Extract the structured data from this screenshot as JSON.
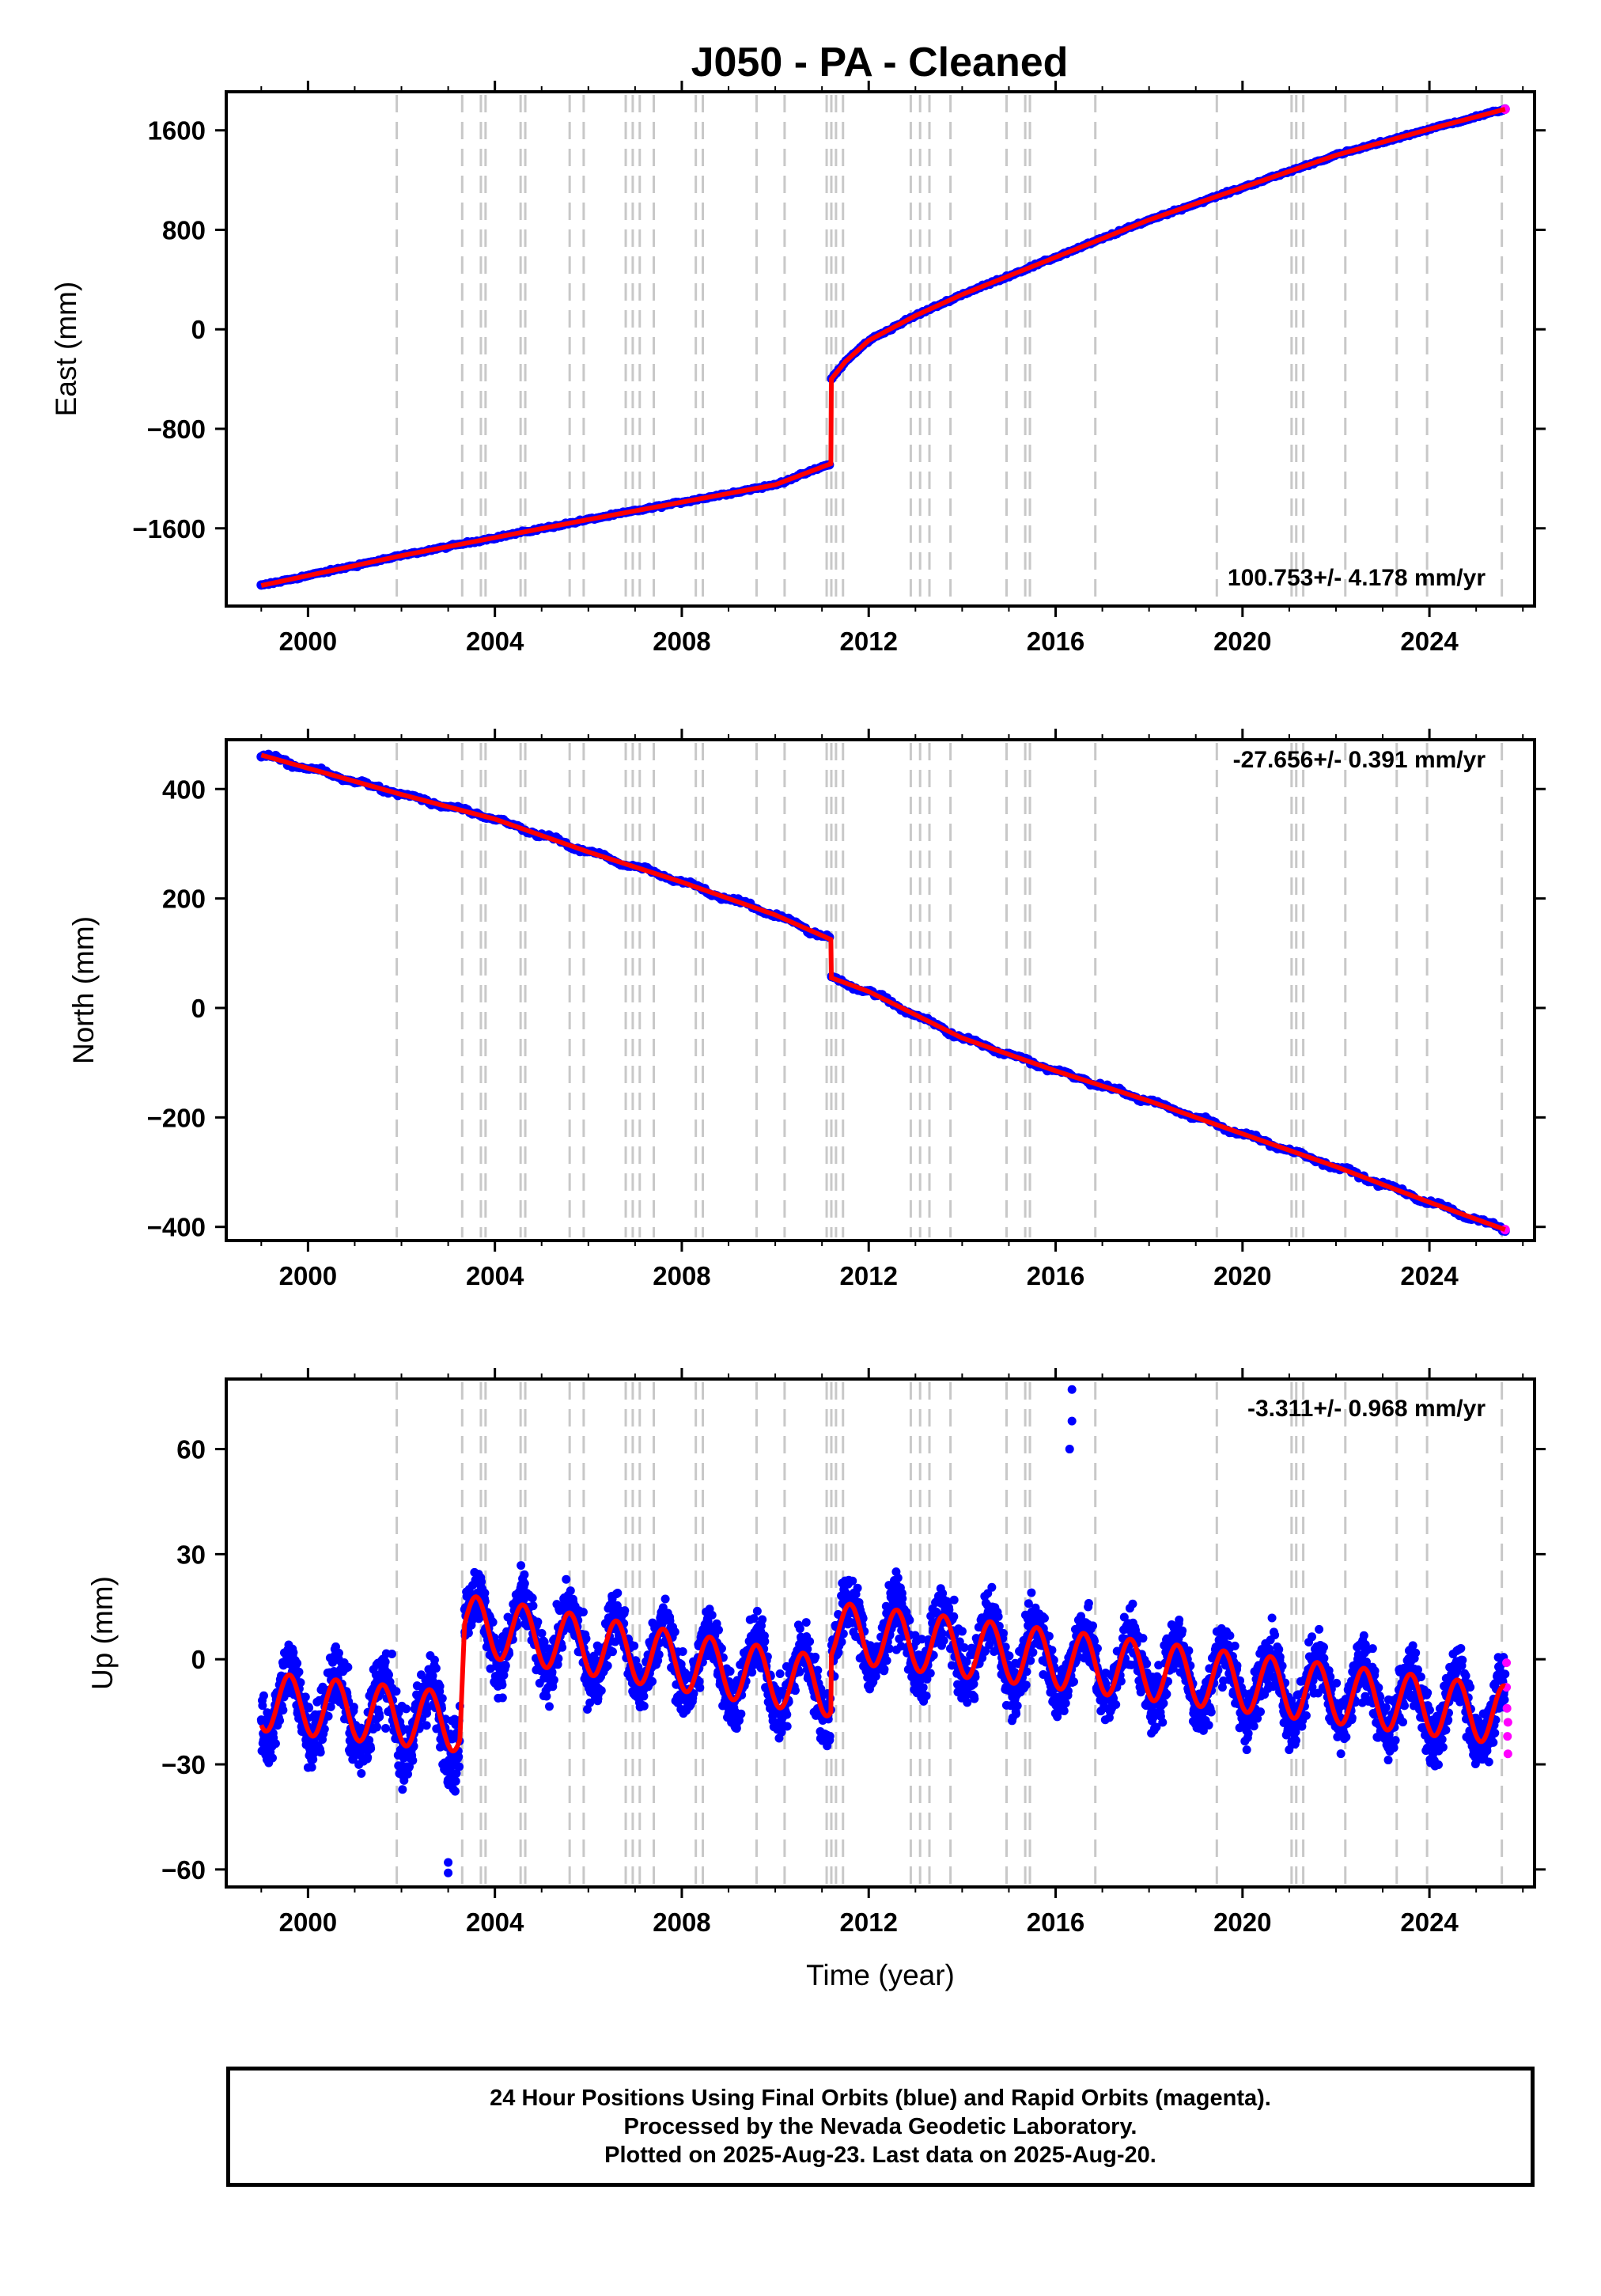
{
  "title": "J050  - PA - Cleaned",
  "footer": {
    "line1": "24 Hour Positions Using Final Orbits (blue) and Rapid Orbits (magenta).",
    "line2": "Processed by the Nevada Geodetic Laboratory.",
    "line3": "Plotted on 2025-Aug-23. Last data on 2025-Aug-20."
  },
  "colors": {
    "final": "#0000ff",
    "rapid": "#ff00ff",
    "model": "#ff0000",
    "event_lines": "#c8c8c8"
  },
  "chart_data": [
    {
      "type": "scatter",
      "title": "",
      "xlabel": "",
      "ylabel": "East (mm)",
      "xlim": [
        1998.25,
        2026.25
      ],
      "ylim": [
        -2225,
        1910
      ],
      "xticks": [
        "2000",
        "2004",
        "2008",
        "2012",
        "2016",
        "2020",
        "2024"
      ],
      "yticks": [
        "1600",
        "800",
        "0",
        "−800",
        "−1600"
      ],
      "rate_label": "100.753+/- 4.178 mm/yr",
      "series": [
        {
          "type": "line",
          "x": [
            1999.0,
            2002.0,
            2006.0,
            2010.0,
            2011.19,
            2011.2,
            2011.5,
            2012.0,
            2013.0,
            2014.0,
            2016.0,
            2018.0,
            2020.0,
            2022.0,
            2024.0,
            2025.62
          ],
          "y": [
            -2060,
            -1820,
            -1530,
            -1250,
            -1080,
            -400,
            -260,
            -90,
            110,
            280,
            580,
            880,
            1140,
            1400,
            1610,
            1770
          ]
        }
      ]
    },
    {
      "type": "scatter",
      "title": "",
      "xlabel": "",
      "ylabel": "North (mm)",
      "xlim": [
        1998.25,
        2026.25
      ],
      "ylim": [
        -425,
        490
      ],
      "xticks": [
        "2000",
        "2004",
        "2008",
        "2012",
        "2016",
        "2020",
        "2024"
      ],
      "yticks": [
        "400",
        "200",
        "0",
        "−200",
        "−400"
      ],
      "rate_label": "-27.656+/- 0.391 mm/yr",
      "series": [
        {
          "type": "line",
          "x": [
            1999.0,
            2002.0,
            2004.0,
            2006.0,
            2008.0,
            2010.0,
            2011.19,
            2011.2,
            2012.0,
            2014.0,
            2016.0,
            2018.0,
            2020.0,
            2022.0,
            2024.0,
            2025.62
          ],
          "y": [
            462,
            390,
            345,
            285,
            230,
            170,
            125,
            55,
            30,
            -55,
            -115,
            -170,
            -230,
            -290,
            -355,
            -405
          ]
        }
      ]
    },
    {
      "type": "scatter",
      "title": "",
      "xlabel": "Time (year)",
      "ylabel": "Up (mm)",
      "xlim": [
        1998.25,
        2026.25
      ],
      "ylim": [
        -65,
        80
      ],
      "xticks": [
        "2000",
        "2004",
        "2008",
        "2012",
        "2016",
        "2020",
        "2024"
      ],
      "yticks": [
        "60",
        "30",
        "0",
        "−30",
        "−60"
      ],
      "rate_label": "-3.311+/- 0.968 mm/yr",
      "seasonal": {
        "period_years": 1.0,
        "amplitude_mm": 12,
        "peak_phase_year": 0.6
      },
      "segments": [
        {
          "x": [
            1999.0,
            2003.25
          ],
          "offset_mm": [
            -12,
            -18
          ],
          "scatter_mm": 7
        },
        {
          "x": [
            2003.35,
            2011.19
          ],
          "offset_mm": [
            10,
            -8
          ],
          "scatter_mm": 6
        },
        {
          "x": [
            2011.2,
            2025.62
          ],
          "offset_mm": [
            8,
            -16
          ],
          "scatter_mm": 6
        }
      ],
      "outliers": [
        {
          "x": 2016.35,
          "y": 77
        },
        {
          "x": 2016.35,
          "y": 68
        },
        {
          "x": 2016.3,
          "y": 60
        },
        {
          "x": 2003.0,
          "y": -61
        },
        {
          "x": 2003.0,
          "y": -58
        }
      ],
      "rapid_points": [
        {
          "x": 2025.65,
          "y": -1
        },
        {
          "x": 2025.65,
          "y": -8
        },
        {
          "x": 2025.66,
          "y": -14
        },
        {
          "x": 2025.67,
          "y": -22
        },
        {
          "x": 2025.68,
          "y": -27
        },
        {
          "x": 2025.68,
          "y": -18
        }
      ]
    }
  ],
  "event_lines_x": [
    2001.9,
    2003.3,
    2003.7,
    2003.8,
    2004.55,
    2004.65,
    2005.6,
    2005.9,
    2006.8,
    2006.95,
    2007.1,
    2007.4,
    2008.3,
    2008.45,
    2009.6,
    2010.2,
    2011.1,
    2011.2,
    2011.3,
    2011.45,
    2012.9,
    2013.1,
    2013.3,
    2013.75,
    2014.95,
    2015.35,
    2015.45,
    2016.85,
    2019.45,
    2021.05,
    2021.15,
    2021.3,
    2022.2,
    2023.3,
    2023.95,
    2025.55
  ]
}
